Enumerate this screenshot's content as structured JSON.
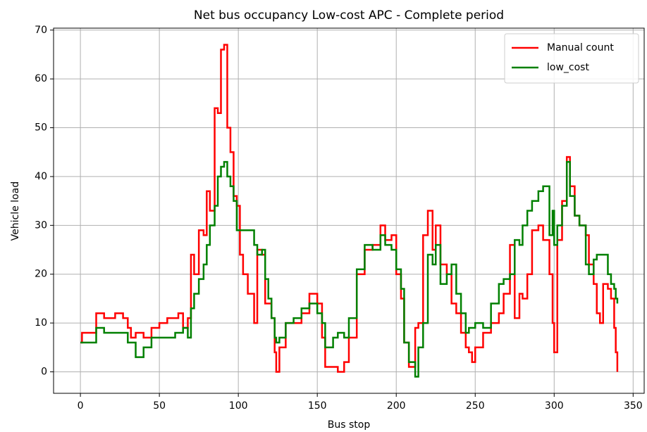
{
  "chart_data": {
    "type": "line",
    "drawstyle": "steps-post",
    "title": "Net bus occupancy Low-cost APC - Complete period",
    "x_label": "Bus stop",
    "y_label": "Vehicle load",
    "x": [
      0,
      1,
      10,
      15,
      22,
      27,
      30,
      32,
      35,
      40,
      45,
      50,
      55,
      60,
      62,
      65,
      68,
      70,
      72,
      75,
      78,
      80,
      82,
      85,
      87,
      89,
      91,
      93,
      95,
      97,
      99,
      101,
      103,
      106,
      110,
      112,
      115,
      117,
      119,
      121,
      123,
      124,
      126,
      130,
      135,
      140,
      145,
      150,
      153,
      155,
      160,
      163,
      167,
      170,
      175,
      180,
      185,
      190,
      193,
      197,
      200,
      203,
      205,
      208,
      212,
      214,
      217,
      220,
      223,
      225,
      228,
      232,
      235,
      238,
      241,
      244,
      246,
      248,
      250,
      255,
      260,
      265,
      268,
      272,
      275,
      278,
      280,
      283,
      286,
      290,
      293,
      297,
      299,
      300,
      302,
      305,
      308,
      310,
      313,
      316,
      320,
      322,
      325,
      327,
      329,
      331,
      334,
      336,
      338,
      339,
      340
    ],
    "series": [
      {
        "name": "Manual count",
        "color": "#ff0000",
        "values": [
          6,
          8,
          12,
          11,
          12,
          11,
          9,
          7,
          8,
          7,
          9,
          10,
          11,
          11,
          12,
          9,
          11,
          24,
          20,
          29,
          28,
          37,
          33,
          54,
          53,
          66,
          67,
          50,
          45,
          36,
          34,
          24,
          20,
          16,
          10,
          25,
          24,
          14,
          14,
          11,
          4,
          0,
          5,
          10,
          10,
          12,
          16,
          14,
          7,
          1,
          1,
          0,
          2,
          7,
          20,
          25,
          26,
          30,
          27,
          28,
          20,
          15,
          6,
          1,
          9,
          10,
          28,
          33,
          25,
          30,
          22,
          20,
          14,
          12,
          8,
          5,
          4,
          2,
          5,
          8,
          10,
          12,
          16,
          26,
          11,
          16,
          15,
          20,
          29,
          30,
          27,
          20,
          10,
          4,
          27,
          35,
          44,
          38,
          32,
          30,
          28,
          22,
          18,
          12,
          10,
          18,
          17,
          15,
          9,
          4,
          0
        ]
      },
      {
        "name": "low_cost",
        "color": "#008000",
        "values": [
          6,
          6,
          9,
          8,
          8,
          8,
          6,
          6,
          3,
          5,
          7,
          7,
          7,
          8,
          8,
          9,
          7,
          13,
          16,
          19,
          22,
          26,
          30,
          34,
          40,
          42,
          43,
          40,
          38,
          35,
          29,
          29,
          29,
          29,
          26,
          24,
          25,
          19,
          15,
          11,
          7,
          6,
          7,
          10,
          11,
          13,
          14,
          12,
          10,
          5,
          7,
          8,
          7,
          11,
          21,
          26,
          25,
          28,
          26,
          25,
          21,
          17,
          6,
          2,
          -1,
          5,
          10,
          24,
          22,
          26,
          18,
          20,
          22,
          16,
          12,
          8,
          9,
          9,
          10,
          9,
          14,
          18,
          19,
          20,
          27,
          26,
          30,
          33,
          35,
          37,
          38,
          28,
          33,
          26,
          30,
          34,
          43,
          36,
          32,
          30,
          22,
          20,
          23,
          24,
          24,
          24,
          20,
          18,
          17,
          15,
          14
        ]
      }
    ],
    "xlim": [
      -17,
      357
    ],
    "ylim": [
      -4.4,
      70.4
    ],
    "xticks": [
      0,
      50,
      100,
      150,
      200,
      250,
      300,
      350
    ],
    "yticks": [
      0,
      10,
      20,
      30,
      40,
      50,
      60,
      70
    ],
    "grid": true,
    "legend": "upper right"
  }
}
